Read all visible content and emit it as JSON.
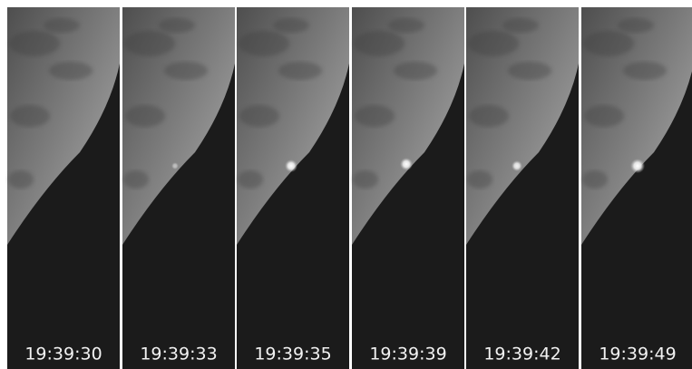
{
  "frames": [
    {
      "time": "19:39:30"
    },
    {
      "time": "19:39:33"
    },
    {
      "time": "19:39:35"
    },
    {
      "time": "19:39:39"
    },
    {
      "time": "19:39:42"
    },
    {
      "time": "19:39:49"
    }
  ]
}
